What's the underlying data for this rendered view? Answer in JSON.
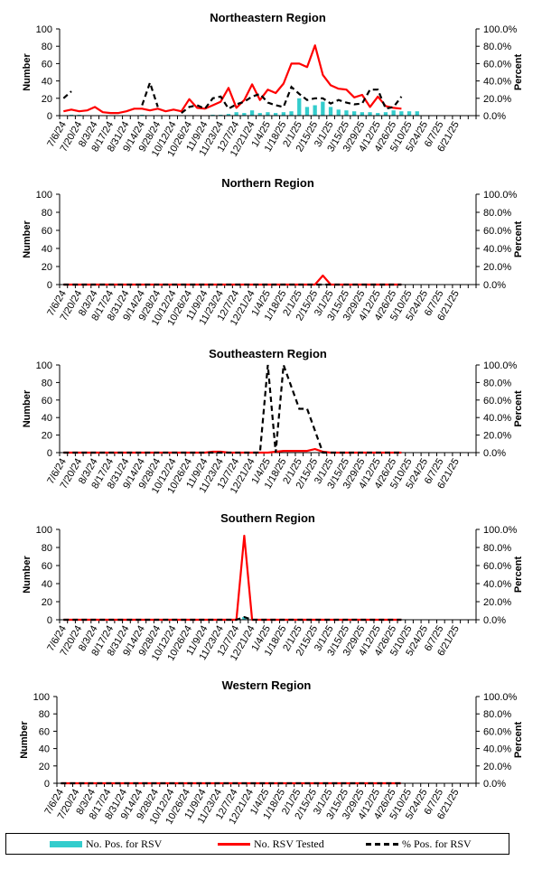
{
  "chart_data": [
    {
      "type": "bar+line",
      "title": "Northeastern Region",
      "ylabel": "Number",
      "y2label": "Percent",
      "ylim": [
        0,
        100
      ],
      "y2lim": [
        0,
        100
      ],
      "yticks": [
        "0",
        "20",
        "40",
        "60",
        "80",
        "100"
      ],
      "y2ticks": [
        "0.0%",
        "20.0%",
        "40.0%",
        "60.0%",
        "80.0%",
        "100.0%"
      ],
      "pos": [
        0,
        1,
        1,
        0,
        0,
        0,
        0,
        0,
        0,
        0,
        1,
        0,
        0,
        0,
        0,
        0,
        0,
        0,
        0,
        1,
        1,
        2,
        4,
        3,
        6,
        3,
        4,
        3,
        4,
        5,
        20,
        10,
        12,
        16,
        10,
        7,
        6,
        5,
        4,
        4,
        3,
        4,
        6,
        5,
        5,
        5,
        0,
        0,
        0,
        0,
        0,
        0,
        0
      ],
      "tested": [
        5,
        7,
        5,
        6,
        10,
        4,
        3,
        3,
        5,
        8,
        8,
        6,
        8,
        5,
        7,
        5,
        19,
        9,
        8,
        12,
        16,
        32,
        9,
        18,
        36,
        18,
        30,
        26,
        37,
        60,
        60,
        56,
        81,
        47,
        35,
        31,
        30,
        21,
        24,
        10,
        22,
        11,
        9,
        8,
        null,
        null,
        null,
        null,
        null,
        null,
        null,
        null,
        null
      ],
      "pct": [
        20,
        28,
        null,
        null,
        null,
        null,
        null,
        null,
        null,
        null,
        12,
        38,
        10,
        null,
        null,
        3,
        10,
        12,
        8,
        20,
        22,
        8,
        13,
        16,
        22,
        25,
        15,
        12,
        10,
        33,
        25,
        18,
        20,
        20,
        14,
        18,
        15,
        13,
        14,
        30,
        30,
        8,
        10,
        22,
        null,
        null,
        null,
        null,
        null,
        null,
        null,
        null,
        null
      ]
    },
    {
      "type": "bar+line",
      "title": "Northern Region",
      "ylabel": "Number",
      "y2label": "Percent",
      "ylim": [
        0,
        100
      ],
      "y2lim": [
        0,
        100
      ],
      "yticks": [
        "0",
        "20",
        "40",
        "60",
        "80",
        "100"
      ],
      "y2ticks": [
        "0.0%",
        "20.0%",
        "40.0%",
        "60.0%",
        "80.0%",
        "100.0%"
      ],
      "pos": [
        0,
        0,
        0,
        0,
        0,
        0,
        0,
        0,
        0,
        0,
        0,
        0,
        0,
        0,
        0,
        0,
        0,
        0,
        0,
        0,
        0,
        0,
        0,
        0,
        0,
        0,
        0,
        0,
        0,
        0,
        0,
        0,
        0,
        0,
        0,
        0,
        0,
        0,
        0,
        0,
        0,
        0,
        0,
        0,
        0,
        0,
        0,
        0,
        0,
        0,
        0,
        0,
        0
      ],
      "tested": [
        0,
        0,
        0,
        0,
        0,
        0,
        0,
        0,
        0,
        0,
        0,
        0,
        0,
        0,
        0,
        0,
        0,
        0,
        0,
        0,
        0,
        0,
        0,
        0,
        0,
        0,
        0,
        0,
        0,
        0,
        0,
        0,
        0,
        10,
        0,
        0,
        0,
        0,
        0,
        0,
        0,
        0,
        0,
        0,
        null,
        null,
        null,
        null,
        null,
        null,
        null,
        null,
        null
      ],
      "pct": [
        0,
        0,
        0,
        0,
        0,
        0,
        0,
        0,
        0,
        0,
        0,
        0,
        0,
        0,
        0,
        0,
        0,
        0,
        0,
        0,
        0,
        0,
        0,
        0,
        0,
        0,
        0,
        0,
        0,
        0,
        0,
        0,
        0,
        0,
        0,
        0,
        0,
        0,
        0,
        0,
        0,
        0,
        0,
        0,
        null,
        null,
        null,
        null,
        null,
        null,
        null,
        null,
        null
      ]
    },
    {
      "type": "bar+line",
      "title": "Southeastern Region",
      "ylabel": "Number",
      "y2label": "Percent",
      "ylim": [
        0,
        100
      ],
      "y2lim": [
        0,
        100
      ],
      "yticks": [
        "0",
        "20",
        "40",
        "60",
        "80",
        "100"
      ],
      "y2ticks": [
        "0.0%",
        "20.0%",
        "40.0%",
        "60.0%",
        "80.0%",
        "100.0%"
      ],
      "pos": [
        0,
        0,
        0,
        0,
        0,
        0,
        0,
        0,
        0,
        0,
        0,
        0,
        0,
        0,
        0,
        0,
        0,
        0,
        0,
        0,
        0,
        0,
        0,
        0,
        0,
        0,
        0,
        0,
        0,
        0,
        0,
        0,
        0,
        0,
        0,
        0,
        0,
        0,
        0,
        0,
        0,
        0,
        0,
        0,
        0,
        0,
        0,
        0,
        0,
        0,
        0,
        0,
        0
      ],
      "tested": [
        0,
        0,
        0,
        0,
        0,
        0,
        0,
        0,
        0,
        0,
        0,
        0,
        0,
        0,
        0,
        0,
        0,
        0,
        0,
        1,
        1,
        0,
        0,
        0,
        0,
        0,
        0,
        1,
        2,
        2,
        2,
        2,
        4,
        1,
        0,
        0,
        0,
        0,
        0,
        0,
        0,
        0,
        0,
        0,
        null,
        null,
        null,
        null,
        null,
        null,
        null,
        null,
        null
      ],
      "pct": [
        0,
        0,
        0,
        0,
        0,
        0,
        0,
        0,
        0,
        0,
        0,
        0,
        0,
        0,
        0,
        0,
        0,
        0,
        0,
        0,
        0,
        0,
        0,
        0,
        0,
        0,
        100,
        0,
        100,
        75,
        50,
        50,
        25,
        0,
        0,
        0,
        0,
        0,
        0,
        0,
        0,
        0,
        0,
        0,
        null,
        null,
        null,
        null,
        null,
        null,
        null,
        null,
        null
      ]
    },
    {
      "type": "bar+line",
      "title": "Southern Region",
      "ylabel": "Number",
      "y2label": "Percent",
      "ylim": [
        0,
        100
      ],
      "y2lim": [
        0,
        100
      ],
      "yticks": [
        "0",
        "20",
        "40",
        "60",
        "80",
        "100"
      ],
      "y2ticks": [
        "0.0%",
        "20.0%",
        "40.0%",
        "60.0%",
        "80.0%",
        "100.0%"
      ],
      "pos": [
        0,
        0,
        0,
        0,
        0,
        0,
        0,
        0,
        0,
        0,
        0,
        0,
        0,
        0,
        0,
        0,
        0,
        0,
        0,
        0,
        0,
        0,
        0,
        3,
        0,
        0,
        0,
        0,
        0,
        0,
        0,
        0,
        0,
        0,
        0,
        0,
        0,
        0,
        0,
        0,
        0,
        0,
        0,
        0,
        0,
        0,
        0,
        0,
        0,
        0,
        0,
        0,
        0
      ],
      "tested": [
        0,
        0,
        0,
        0,
        0,
        0,
        0,
        0,
        0,
        0,
        0,
        0,
        0,
        0,
        0,
        0,
        0,
        0,
        0,
        0,
        0,
        0,
        0,
        93,
        0,
        0,
        0,
        0,
        0,
        0,
        0,
        0,
        0,
        0,
        0,
        0,
        0,
        0,
        0,
        0,
        0,
        0,
        0,
        0,
        null,
        null,
        null,
        null,
        null,
        null,
        null,
        null,
        null
      ],
      "pct": [
        0,
        0,
        0,
        0,
        0,
        0,
        0,
        0,
        0,
        0,
        0,
        0,
        0,
        0,
        0,
        0,
        0,
        0,
        0,
        0,
        0,
        0,
        0,
        3,
        0,
        0,
        0,
        0,
        0,
        0,
        0,
        0,
        0,
        0,
        0,
        0,
        0,
        0,
        0,
        0,
        0,
        0,
        0,
        0,
        null,
        null,
        null,
        null,
        null,
        null,
        null,
        null,
        null
      ]
    },
    {
      "type": "bar+line",
      "title": "Western Region",
      "ylabel": "Number",
      "y2label": "Percent",
      "ylim": [
        0,
        100
      ],
      "y2lim": [
        0,
        100
      ],
      "yticks": [
        "0",
        "20",
        "40",
        "60",
        "80",
        "100"
      ],
      "y2ticks": [
        "0.0%",
        "20.0%",
        "40.0%",
        "60.0%",
        "80.0%",
        "100.0%"
      ],
      "pos": [
        0,
        0,
        0,
        0,
        0,
        0,
        0,
        0,
        0,
        0,
        0,
        0,
        0,
        0,
        0,
        0,
        0,
        0,
        0,
        0,
        0,
        0,
        0,
        0,
        0,
        0,
        0,
        0,
        0,
        0,
        0,
        0,
        0,
        0,
        0,
        0,
        0,
        0,
        0,
        0,
        0,
        0,
        0,
        0,
        0,
        0,
        0,
        0,
        0,
        0,
        0,
        0,
        0
      ],
      "tested": [
        0,
        0,
        0,
        0,
        0,
        0,
        0,
        0,
        0,
        0,
        0,
        0,
        0,
        0,
        0,
        0,
        0,
        0,
        0,
        0,
        0,
        0,
        0,
        0,
        0,
        0,
        0,
        0,
        0,
        0,
        0,
        0,
        0,
        0,
        0,
        0,
        0,
        0,
        0,
        0,
        0,
        0,
        0,
        0,
        null,
        null,
        null,
        null,
        null,
        null,
        null,
        null,
        null
      ],
      "pct": [
        0,
        0,
        0,
        0,
        0,
        0,
        0,
        0,
        0,
        0,
        0,
        0,
        0,
        0,
        0,
        0,
        0,
        0,
        0,
        0,
        0,
        0,
        0,
        0,
        0,
        0,
        0,
        0,
        0,
        0,
        0,
        0,
        0,
        0,
        0,
        0,
        0,
        0,
        0,
        0,
        0,
        0,
        0,
        0,
        null,
        null,
        null,
        null,
        null,
        null,
        null,
        null,
        null
      ]
    }
  ],
  "xlabels": [
    "7/6/24",
    "7/20/24",
    "8/3/24",
    "8/17/24",
    "8/31/24",
    "9/14/24",
    "9/28/24",
    "10/12/24",
    "10/26/24",
    "11/9/24",
    "11/23/24",
    "12/7/24",
    "12/21/24",
    "1/4/25",
    "1/18/25",
    "2/1/25",
    "2/15/25",
    "3/1/25",
    "3/15/25",
    "3/29/25",
    "4/12/25",
    "4/26/25",
    "5/10/25",
    "5/24/25",
    "6/7/25",
    "6/21/25"
  ],
  "legend": [
    {
      "label": "No. Pos. for RSV",
      "color": "#33CCCC",
      "style": "bar"
    },
    {
      "label": "No. RSV Tested",
      "color": "#FF0000",
      "style": "solid"
    },
    {
      "label": "% Pos. for RSV",
      "color": "#000000",
      "style": "dashed"
    }
  ]
}
